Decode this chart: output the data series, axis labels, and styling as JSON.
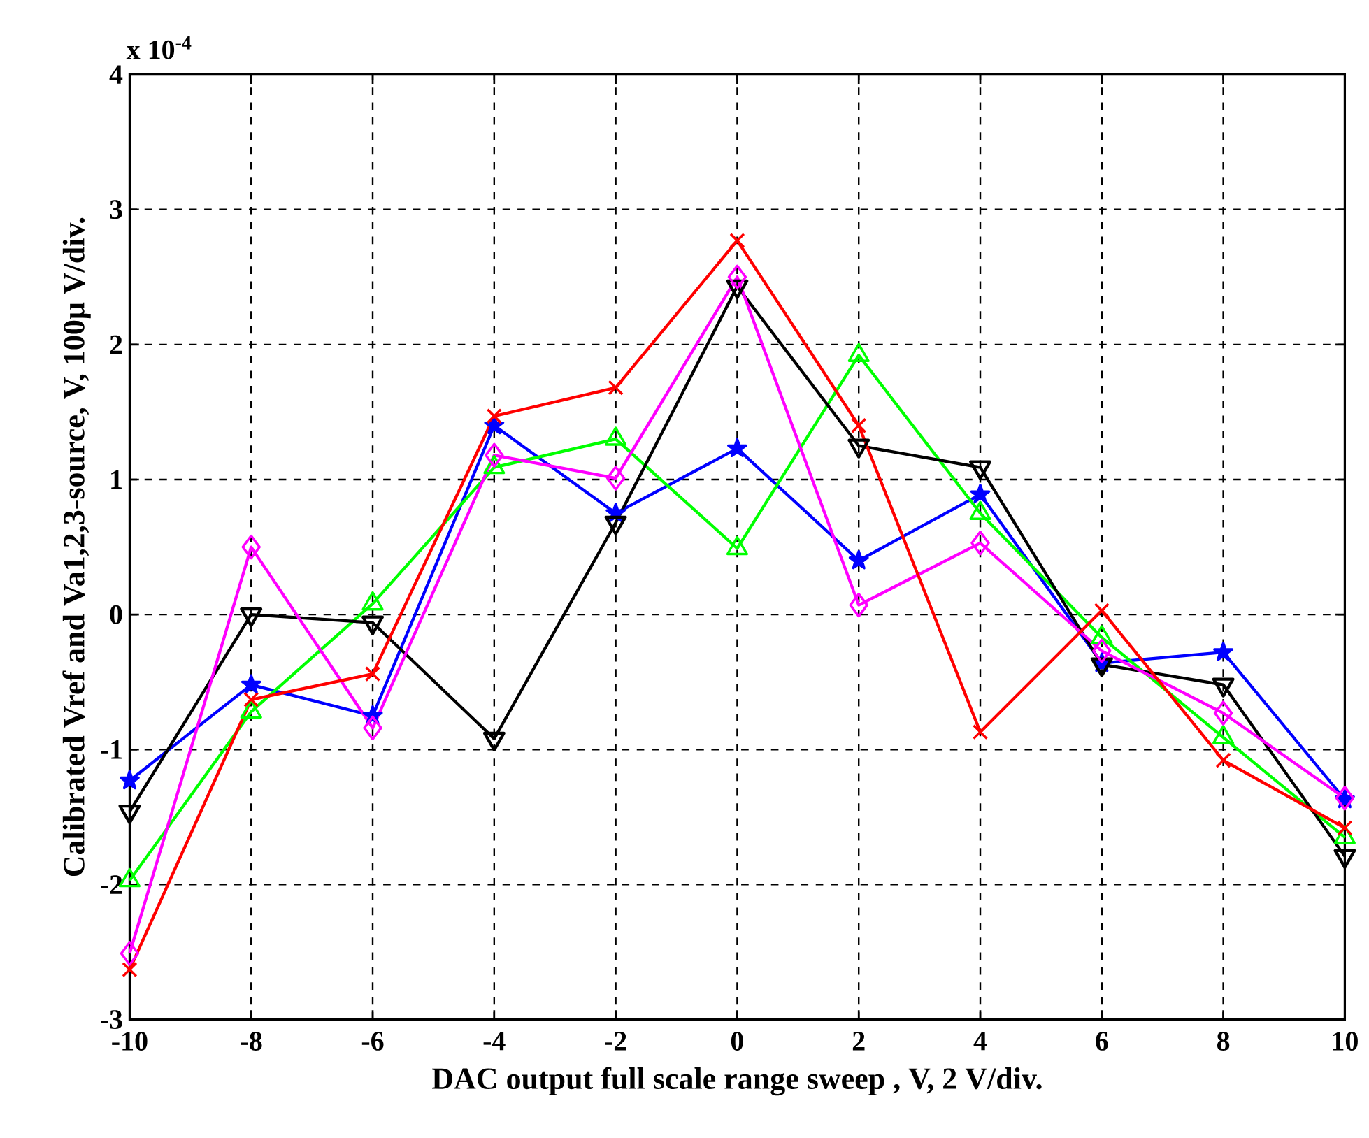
{
  "chart_data": {
    "type": "line",
    "xlabel": "DAC output full scale range sweep , V, 2 V/div.",
    "ylabel": "Calibrated Vref and Va1,2,3-source, V, 100μ V/div.",
    "annotations": [
      "x 10$^{-4}$"
    ],
    "x": [
      -10,
      -8,
      -6,
      -4,
      -2,
      0,
      2,
      4,
      6,
      8,
      10
    ],
    "xlim": [
      -10,
      10
    ],
    "xticks": [
      -10,
      -8,
      -6,
      -4,
      -2,
      0,
      2,
      4,
      6,
      8,
      10
    ],
    "ylim": [
      -3,
      4
    ],
    "yticks": [
      -3,
      -2,
      -1,
      0,
      1,
      2,
      3,
      4
    ],
    "grid": true,
    "line_style": "solid",
    "series": [
      {
        "color": "#0000ff",
        "marker": "star",
        "values": [
          -1.23,
          -0.52,
          -0.75,
          1.4,
          0.75,
          1.23,
          0.4,
          0.89,
          -0.36,
          -0.28,
          -1.37
        ]
      },
      {
        "color": "#00ff00",
        "marker": "triangle",
        "values": [
          -1.97,
          -0.72,
          0.08,
          1.09,
          1.3,
          0.49,
          1.92,
          0.75,
          -0.17,
          -0.91,
          -1.65
        ]
      },
      {
        "color": "#000000",
        "marker": "triangle_down",
        "values": [
          -1.46,
          0.0,
          -0.06,
          -0.92,
          0.68,
          2.43,
          1.25,
          1.09,
          -0.37,
          -0.52,
          -1.79
        ]
      },
      {
        "color": "#ff00ff",
        "marker": "diamond",
        "values": [
          -2.51,
          0.5,
          -0.84,
          1.18,
          1.01,
          2.5,
          0.07,
          0.53,
          -0.27,
          -0.73,
          -1.36
        ]
      },
      {
        "color": "#ff0000",
        "marker": "cross",
        "values": [
          -2.63,
          -0.63,
          -0.44,
          1.47,
          1.68,
          2.77,
          1.4,
          -0.87,
          0.03,
          -1.08,
          -1.58
        ]
      }
    ]
  }
}
